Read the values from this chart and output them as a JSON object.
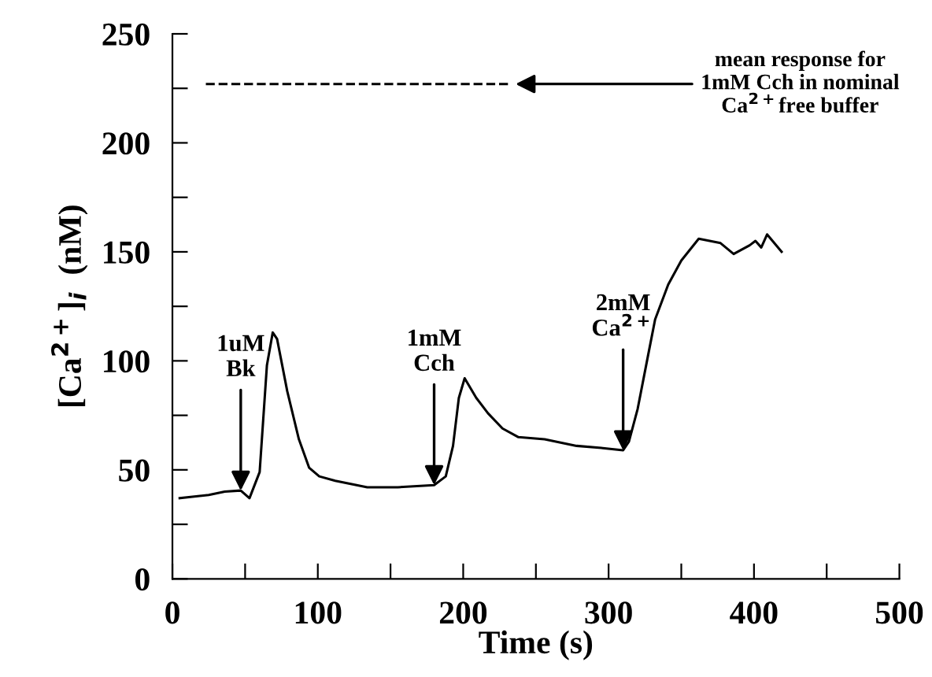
{
  "chart_data": {
    "type": "line",
    "xlabel": "Time (s)",
    "ylabel": "[Ca$^{2+}$]$_{i}$  (nM)",
    "xlim": [
      0,
      500
    ],
    "ylim": [
      0,
      250
    ],
    "xticks": [
      0,
      {
        "value": 50,
        "label": null
      },
      100,
      {
        "value": 150,
        "label": null
      },
      200,
      {
        "value": 250,
        "label": null
      },
      300,
      {
        "value": 350,
        "label": null
      },
      400,
      {
        "value": 450,
        "label": null
      },
      500
    ],
    "yticks": [
      0,
      {
        "value": 25,
        "label": null
      },
      50,
      {
        "value": 75,
        "label": null
      },
      100,
      {
        "value": 125,
        "label": null
      },
      150,
      {
        "value": 175,
        "label": null
      },
      200,
      {
        "value": 225,
        "label": null
      },
      250
    ],
    "grid": false,
    "legend": false,
    "marker": "none",
    "series": [
      {
        "color": "#000000",
        "line_style": "solid",
        "x": [
          5,
          25,
          36,
          47,
          53,
          60,
          65,
          69,
          72,
          79,
          87,
          94,
          101,
          112,
          134,
          155,
          180,
          188,
          193,
          197,
          201,
          209,
          217,
          227,
          238,
          256,
          278,
          296,
          310,
          314,
          320,
          327,
          332,
          341,
          350,
          362,
          377,
          386,
          397,
          401,
          405,
          409,
          419
        ],
        "values": [
          37,
          38.5,
          40,
          40.5,
          37,
          49,
          98,
          113,
          110,
          86,
          64,
          51,
          47,
          45,
          42,
          42,
          43,
          47,
          61,
          83,
          92,
          83,
          76,
          69,
          65,
          64,
          61,
          60,
          59,
          63,
          78,
          102,
          119,
          135,
          146,
          156,
          154,
          149,
          153,
          155,
          152,
          158,
          150
        ]
      },
      {
        "color": "#000000",
        "line_style": "dashed",
        "x": [
          23,
          231
        ],
        "values": [
          227,
          227
        ]
      }
    ],
    "annotations": [
      {
        "text": "1uM\nBk",
        "x": 47,
        "y": 40.5
      },
      {
        "text": "1mM\nCch",
        "x": 180,
        "y": 43
      },
      {
        "text": "2mM\nCa$^{2+}$",
        "x": 310,
        "y": 59
      },
      {
        "text": "mean response for\n1mM Cch in nominal\nCa$^{2+}$free buffer",
        "x": 233,
        "y": 227
      }
    ]
  }
}
